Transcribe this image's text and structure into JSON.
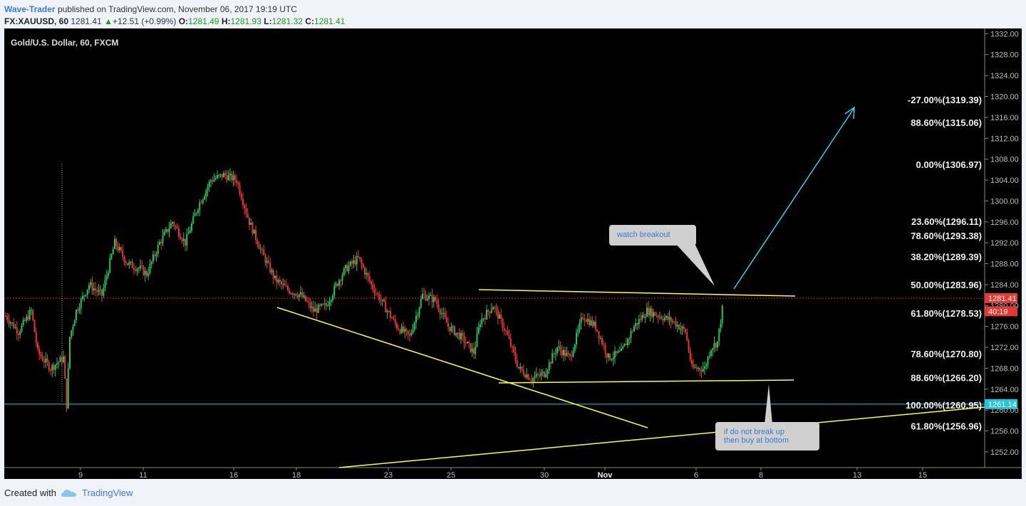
{
  "header": {
    "author": "Wave-Trader",
    "published_text": "published on TradingView.com, November 06, 2017 19:19 UTC",
    "symbol": "FX:XAUUSD, 60",
    "last": "1281.41",
    "change_arrow": "▲",
    "change": "+12.51 (+0.99%)",
    "open_label": "O:",
    "open": "1281.49",
    "high_label": "H:",
    "high": "1281.93",
    "low_label": "L:",
    "low": "1281.32",
    "close_label": "C:",
    "close": "1281.41"
  },
  "chart_title": "Gold/U.S. Dollar, 60, FXCM",
  "footer": {
    "created_with": "Created with",
    "brand": "TradingView",
    "brand_icon": "tradingview-cloud-icon"
  },
  "colors": {
    "background": "#000000",
    "up": "#22c55e",
    "down": "#e53935",
    "trend": "#ffff33",
    "arrow": "#2ad4ee",
    "support": "#26c6da"
  },
  "chart_data": {
    "type": "candlestick",
    "y_range": [
      1249,
      1333
    ],
    "y_ticks": [
      "1332.00",
      "1328.00",
      "1324.00",
      "1320.00",
      "1316.00",
      "1312.00",
      "1308.00",
      "1304.00",
      "1300.00",
      "1296.00",
      "1292.00",
      "1288.00",
      "1284.00",
      "1280.00",
      "1276.00",
      "1272.00",
      "1268.00",
      "1264.00",
      "1260.00",
      "1256.00",
      "1252.00"
    ],
    "x_ticks": [
      "9",
      "11",
      "16",
      "18",
      "23",
      "25",
      "30",
      "Nov",
      "6",
      "8",
      "13",
      "15"
    ],
    "price_tags": [
      {
        "label": "1281.41",
        "value": 1281.41,
        "color": "#e53935"
      },
      {
        "label": "40:19",
        "value": 1278.9,
        "color": "#e53935"
      },
      {
        "label": "1261.14",
        "value": 1261.14,
        "color": "#26c6da"
      }
    ],
    "fib_levels": [
      {
        "label": "-27.00%(1319.39)",
        "value": 1319.39
      },
      {
        "label": "88.60%(1315.06)",
        "value": 1315.06
      },
      {
        "label": "0.00%(1306.97)",
        "value": 1306.97
      },
      {
        "label": "23.60%(1296.11)",
        "value": 1296.11
      },
      {
        "label": "78.60%(1293.38)",
        "value": 1293.38
      },
      {
        "label": "38.20%(1289.39)",
        "value": 1289.39
      },
      {
        "label": "50.00%(1283.96)",
        "value": 1283.96
      },
      {
        "label": "61.80%(1278.53)",
        "value": 1278.53
      },
      {
        "label": "78.60%(1270.80)",
        "value": 1270.8
      },
      {
        "label": "88.60%(1266.20)",
        "value": 1266.2
      },
      {
        "label": "100.00%(1260.95)",
        "value": 1260.95
      },
      {
        "label": "61.80%(1256.96)",
        "value": 1256.96
      }
    ],
    "annotations": [
      {
        "text": "watch breakout"
      },
      {
        "lines": [
          "if do not break up",
          "then buy at bottom"
        ]
      }
    ],
    "price_path": [
      [
        0,
        1278
      ],
      [
        2,
        1275
      ],
      [
        4,
        1279
      ],
      [
        5,
        1271
      ],
      [
        7,
        1268
      ],
      [
        9,
        1270
      ],
      [
        9.5,
        1261
      ],
      [
        10,
        1274
      ],
      [
        11,
        1279
      ],
      [
        13,
        1284
      ],
      [
        15,
        1282
      ],
      [
        17,
        1292
      ],
      [
        19,
        1288
      ],
      [
        21,
        1287
      ],
      [
        22,
        1286
      ],
      [
        24,
        1292
      ],
      [
        26,
        1296
      ],
      [
        28,
        1292
      ],
      [
        30,
        1299
      ],
      [
        32,
        1304
      ],
      [
        34,
        1305
      ],
      [
        36,
        1304
      ],
      [
        38,
        1296
      ],
      [
        40,
        1290
      ],
      [
        42,
        1285
      ],
      [
        44,
        1283
      ],
      [
        46,
        1282
      ],
      [
        48,
        1279
      ],
      [
        50,
        1280
      ],
      [
        52,
        1285
      ],
      [
        53,
        1287
      ],
      [
        55,
        1289
      ],
      [
        57,
        1284
      ],
      [
        59,
        1280
      ],
      [
        61,
        1276
      ],
      [
        63,
        1274
      ],
      [
        65,
        1282
      ],
      [
        67,
        1281
      ],
      [
        69,
        1276
      ],
      [
        71,
        1274
      ],
      [
        73,
        1271
      ],
      [
        74,
        1277
      ],
      [
        76,
        1280
      ],
      [
        78,
        1275
      ],
      [
        80,
        1268
      ],
      [
        82,
        1266
      ],
      [
        84,
        1267
      ],
      [
        86,
        1272
      ],
      [
        88,
        1270
      ],
      [
        90,
        1278
      ],
      [
        92,
        1276
      ],
      [
        94,
        1270
      ],
      [
        96,
        1271
      ],
      [
        98,
        1276
      ],
      [
        100,
        1279
      ],
      [
        102,
        1278
      ],
      [
        104,
        1277
      ],
      [
        106,
        1275
      ],
      [
        107,
        1268
      ],
      [
        109,
        1268
      ],
      [
        110,
        1272
      ],
      [
        111,
        1273
      ],
      [
        112,
        1281.4
      ]
    ]
  }
}
